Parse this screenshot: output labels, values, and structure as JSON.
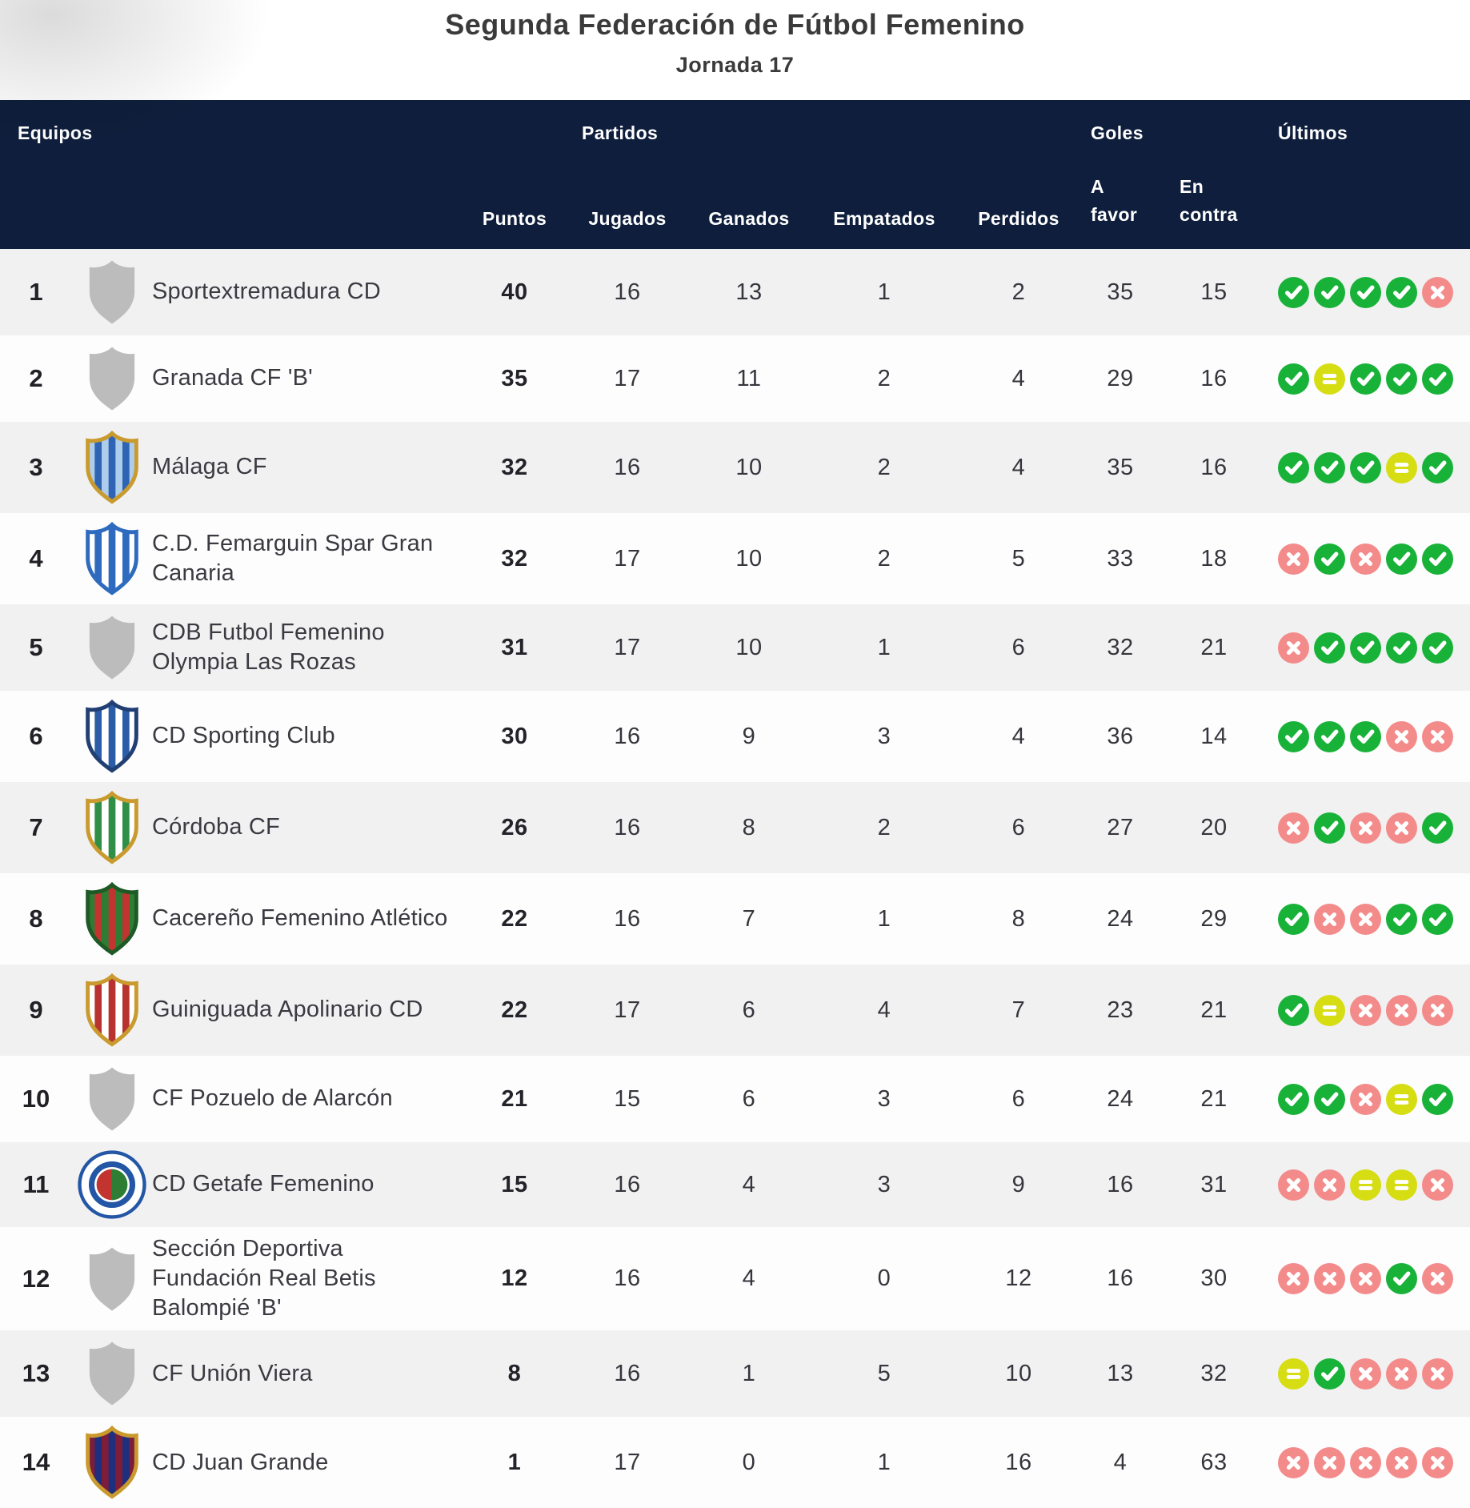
{
  "page": {
    "title": "Segunda Federación de Fútbol Femenino",
    "subtitle": "Jornada 17"
  },
  "colors": {
    "header_bg": "#0e1e3c",
    "row_bg": "#fdfdfd",
    "row_alt_bg": "#f1f1f2",
    "win": "#19b239",
    "draw": "#d6dd12",
    "loss": "#f48b8b",
    "badge_placeholder": "#bcbcbc"
  },
  "table": {
    "header": {
      "equipos": "Equipos",
      "partidos": "Partidos",
      "goles": "Goles",
      "ultimos": "Últimos",
      "puntos": "Puntos",
      "jugados": "Jugados",
      "ganados": "Ganados",
      "empatados": "Empatados",
      "perdidos": "Perdidos",
      "a_favor_l1": "A",
      "a_favor_l2": "favor",
      "en_contra_l1": "En",
      "en_contra_l2": "contra"
    },
    "rows": [
      {
        "pos": "1",
        "name": "Sportextremadura CD",
        "badge": {
          "kind": "placeholder"
        },
        "puntos": "40",
        "jugados": "16",
        "ganados": "13",
        "empatados": "1",
        "perdidos": "2",
        "favor": "35",
        "contra": "15",
        "form": [
          "W",
          "W",
          "W",
          "W",
          "L"
        ]
      },
      {
        "pos": "2",
        "name": "Granada CF 'B'",
        "badge": {
          "kind": "placeholder"
        },
        "puntos": "35",
        "jugados": "17",
        "ganados": "11",
        "empatados": "2",
        "perdidos": "4",
        "favor": "29",
        "contra": "16",
        "form": [
          "W",
          "D",
          "W",
          "W",
          "W"
        ]
      },
      {
        "pos": "3",
        "name": "Málaga CF",
        "badge": {
          "kind": "crest",
          "colors": [
            "#aecdea",
            "#2f64b5"
          ],
          "border": "#c99a2e"
        },
        "puntos": "32",
        "jugados": "16",
        "ganados": "10",
        "empatados": "2",
        "perdidos": "4",
        "favor": "35",
        "contra": "16",
        "form": [
          "W",
          "W",
          "W",
          "D",
          "W"
        ]
      },
      {
        "pos": "4",
        "name": "C.D. Femarguin Spar Gran Canaria",
        "badge": {
          "kind": "crest",
          "colors": [
            "#ffffff",
            "#2e6bbf"
          ],
          "border": "#2e6bbf"
        },
        "puntos": "32",
        "jugados": "17",
        "ganados": "10",
        "empatados": "2",
        "perdidos": "5",
        "favor": "33",
        "contra": "18",
        "form": [
          "L",
          "W",
          "L",
          "W",
          "W"
        ]
      },
      {
        "pos": "5",
        "name": "CDB Futbol Femenino Olympia Las Rozas",
        "badge": {
          "kind": "placeholder"
        },
        "puntos": "31",
        "jugados": "17",
        "ganados": "10",
        "empatados": "1",
        "perdidos": "6",
        "favor": "32",
        "contra": "21",
        "form": [
          "L",
          "W",
          "W",
          "W",
          "W"
        ]
      },
      {
        "pos": "6",
        "name": "CD Sporting Club",
        "badge": {
          "kind": "crest",
          "colors": [
            "#ffffff",
            "#2b5ca8"
          ],
          "border": "#223f73"
        },
        "puntos": "30",
        "jugados": "16",
        "ganados": "9",
        "empatados": "3",
        "perdidos": "4",
        "favor": "36",
        "contra": "14",
        "form": [
          "W",
          "W",
          "W",
          "L",
          "L"
        ]
      },
      {
        "pos": "7",
        "name": "Córdoba CF",
        "badge": {
          "kind": "crest",
          "colors": [
            "#ffffff",
            "#2f8f46"
          ],
          "border": "#c99a2e"
        },
        "puntos": "26",
        "jugados": "16",
        "ganados": "8",
        "empatados": "2",
        "perdidos": "6",
        "favor": "27",
        "contra": "20",
        "form": [
          "L",
          "W",
          "L",
          "L",
          "W"
        ]
      },
      {
        "pos": "8",
        "name": "Cacereño Femenino Atlético",
        "badge": {
          "kind": "crest",
          "colors": [
            "#2e7d35",
            "#c23430"
          ],
          "border": "#1d5a26"
        },
        "puntos": "22",
        "jugados": "16",
        "ganados": "7",
        "empatados": "1",
        "perdidos": "8",
        "favor": "24",
        "contra": "29",
        "form": [
          "W",
          "L",
          "L",
          "W",
          "W"
        ]
      },
      {
        "pos": "9",
        "name": "Guiniguada Apolinario CD",
        "badge": {
          "kind": "crest",
          "colors": [
            "#ffffff",
            "#b8332f"
          ],
          "border": "#c99a2e"
        },
        "puntos": "22",
        "jugados": "17",
        "ganados": "6",
        "empatados": "4",
        "perdidos": "7",
        "favor": "23",
        "contra": "21",
        "form": [
          "W",
          "D",
          "L",
          "L",
          "L"
        ]
      },
      {
        "pos": "10",
        "name": "CF Pozuelo de Alarcón",
        "badge": {
          "kind": "placeholder"
        },
        "puntos": "21",
        "jugados": "15",
        "ganados": "6",
        "empatados": "3",
        "perdidos": "6",
        "favor": "24",
        "contra": "21",
        "form": [
          "W",
          "W",
          "L",
          "D",
          "W"
        ]
      },
      {
        "pos": "11",
        "name": "CD Getafe Femenino",
        "badge": {
          "kind": "circle",
          "ring": "#2356a5",
          "colors": [
            "#c23430",
            "#2e7d35"
          ]
        },
        "puntos": "15",
        "jugados": "16",
        "ganados": "4",
        "empatados": "3",
        "perdidos": "9",
        "favor": "16",
        "contra": "31",
        "form": [
          "L",
          "L",
          "D",
          "D",
          "L"
        ]
      },
      {
        "pos": "12",
        "name": "Sección Deportiva Fundación Real Betis Balompié 'B'",
        "badge": {
          "kind": "placeholder"
        },
        "puntos": "12",
        "jugados": "16",
        "ganados": "4",
        "empatados": "0",
        "perdidos": "12",
        "favor": "16",
        "contra": "30",
        "form": [
          "L",
          "L",
          "L",
          "W",
          "L"
        ]
      },
      {
        "pos": "13",
        "name": "CF Unión Viera",
        "badge": {
          "kind": "placeholder"
        },
        "puntos": "8",
        "jugados": "16",
        "ganados": "1",
        "empatados": "5",
        "perdidos": "10",
        "favor": "13",
        "contra": "32",
        "form": [
          "D",
          "W",
          "L",
          "L",
          "L"
        ]
      },
      {
        "pos": "14",
        "name": "CD Juan Grande",
        "badge": {
          "kind": "crest",
          "colors": [
            "#7d1d3a",
            "#1d2f7d"
          ],
          "border": "#c99a2e"
        },
        "puntos": "1",
        "jugados": "17",
        "ganados": "0",
        "empatados": "1",
        "perdidos": "16",
        "favor": "4",
        "contra": "63",
        "form": [
          "L",
          "L",
          "L",
          "L",
          "L"
        ]
      }
    ]
  }
}
